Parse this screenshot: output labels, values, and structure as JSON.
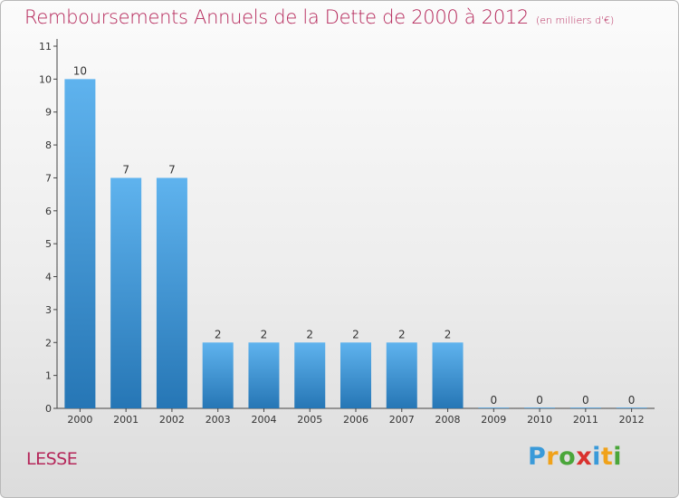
{
  "title": "Remboursements Annuels de la Dette de 2000 à 2012",
  "subtitle": "(en milliers d'€)",
  "commune": "LESSE",
  "logo": {
    "letters": [
      "P",
      "r",
      "o",
      "x",
      "i",
      "t",
      "i"
    ],
    "colors": [
      "#3a9ad9",
      "#f0a21a",
      "#4aa63a",
      "#d9312e",
      "#3a9ad9",
      "#f0a21a",
      "#4aa63a"
    ]
  },
  "colors": {
    "bar_top": "#5fb3ee",
    "bar_bottom": "#2676b5",
    "title": "#b5275a"
  },
  "chart_data": {
    "type": "bar",
    "categories": [
      "2000",
      "2001",
      "2002",
      "2003",
      "2004",
      "2005",
      "2006",
      "2007",
      "2008",
      "2009",
      "2010",
      "2011",
      "2012"
    ],
    "values": [
      10,
      7,
      7,
      2,
      2,
      2,
      2,
      2,
      2,
      0,
      0,
      0,
      0
    ],
    "data_labels": [
      "10",
      "7",
      "7",
      "2",
      "2",
      "2",
      "2",
      "2",
      "2",
      "0",
      "0",
      "0",
      "0"
    ],
    "yticks": [
      "0",
      "1",
      "2",
      "3",
      "4",
      "5",
      "6",
      "7",
      "8",
      "9",
      "10",
      "11"
    ],
    "ylim": [
      0,
      11
    ],
    "grid": false,
    "legend": "none"
  }
}
